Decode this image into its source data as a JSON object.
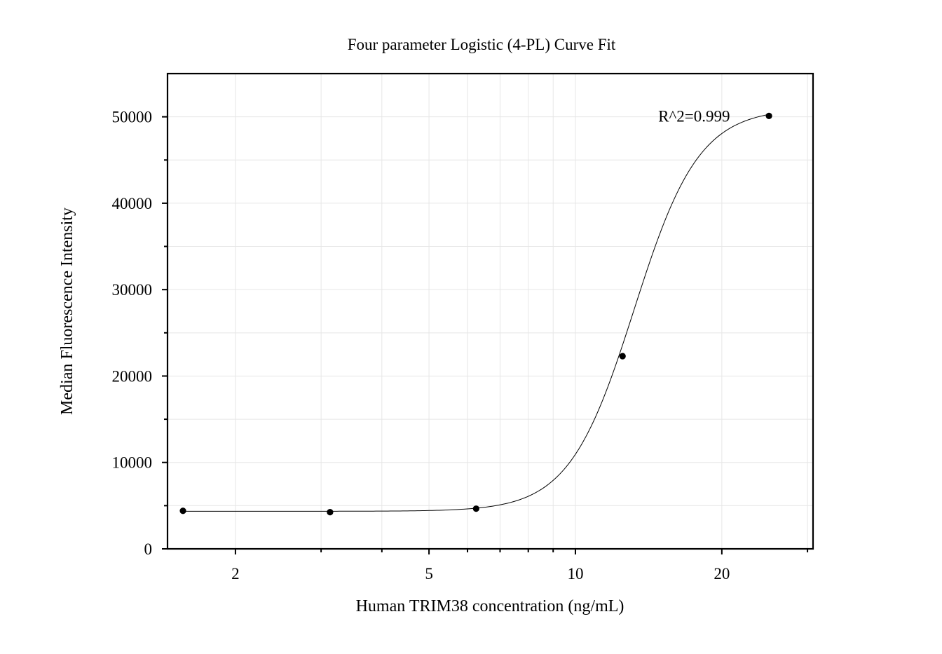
{
  "chart_data": {
    "type": "scatter",
    "title": "Four parameter Logistic (4-PL) Curve Fit",
    "xlabel": "Human TRIM38 concentration (ng/mL)",
    "ylabel": "Median Fluorescence Intensity",
    "x_scale": "log",
    "xlim": [
      1.45,
      30.8
    ],
    "ylim": [
      0,
      55000
    ],
    "x_ticks": [
      2,
      5,
      10,
      20
    ],
    "x_tick_labels": [
      "2",
      "5",
      "10",
      "20"
    ],
    "x_minor_ticks": [
      3,
      4,
      6,
      7,
      8,
      9,
      30
    ],
    "y_ticks": [
      0,
      10000,
      20000,
      30000,
      40000,
      50000
    ],
    "y_tick_labels": [
      "0",
      "10000",
      "20000",
      "30000",
      "40000",
      "50000"
    ],
    "y_minor_ticks": [
      5000,
      15000,
      25000,
      35000,
      45000
    ],
    "grid": true,
    "series": [
      {
        "points": [
          {
            "x": 1.56,
            "y": 4400
          },
          {
            "x": 3.13,
            "y": 4250
          },
          {
            "x": 6.25,
            "y": 4650
          },
          {
            "x": 12.5,
            "y": 22300
          },
          {
            "x": 25,
            "y": 50100
          }
        ]
      }
    ],
    "fit": {
      "model": "4PL",
      "bottom": 4350,
      "top": 51000,
      "ec50": 13.2,
      "hill": 6.5
    },
    "annotations": [
      {
        "text": "R^2=0.999",
        "x": 14.8,
        "y": 50100
      }
    ]
  }
}
